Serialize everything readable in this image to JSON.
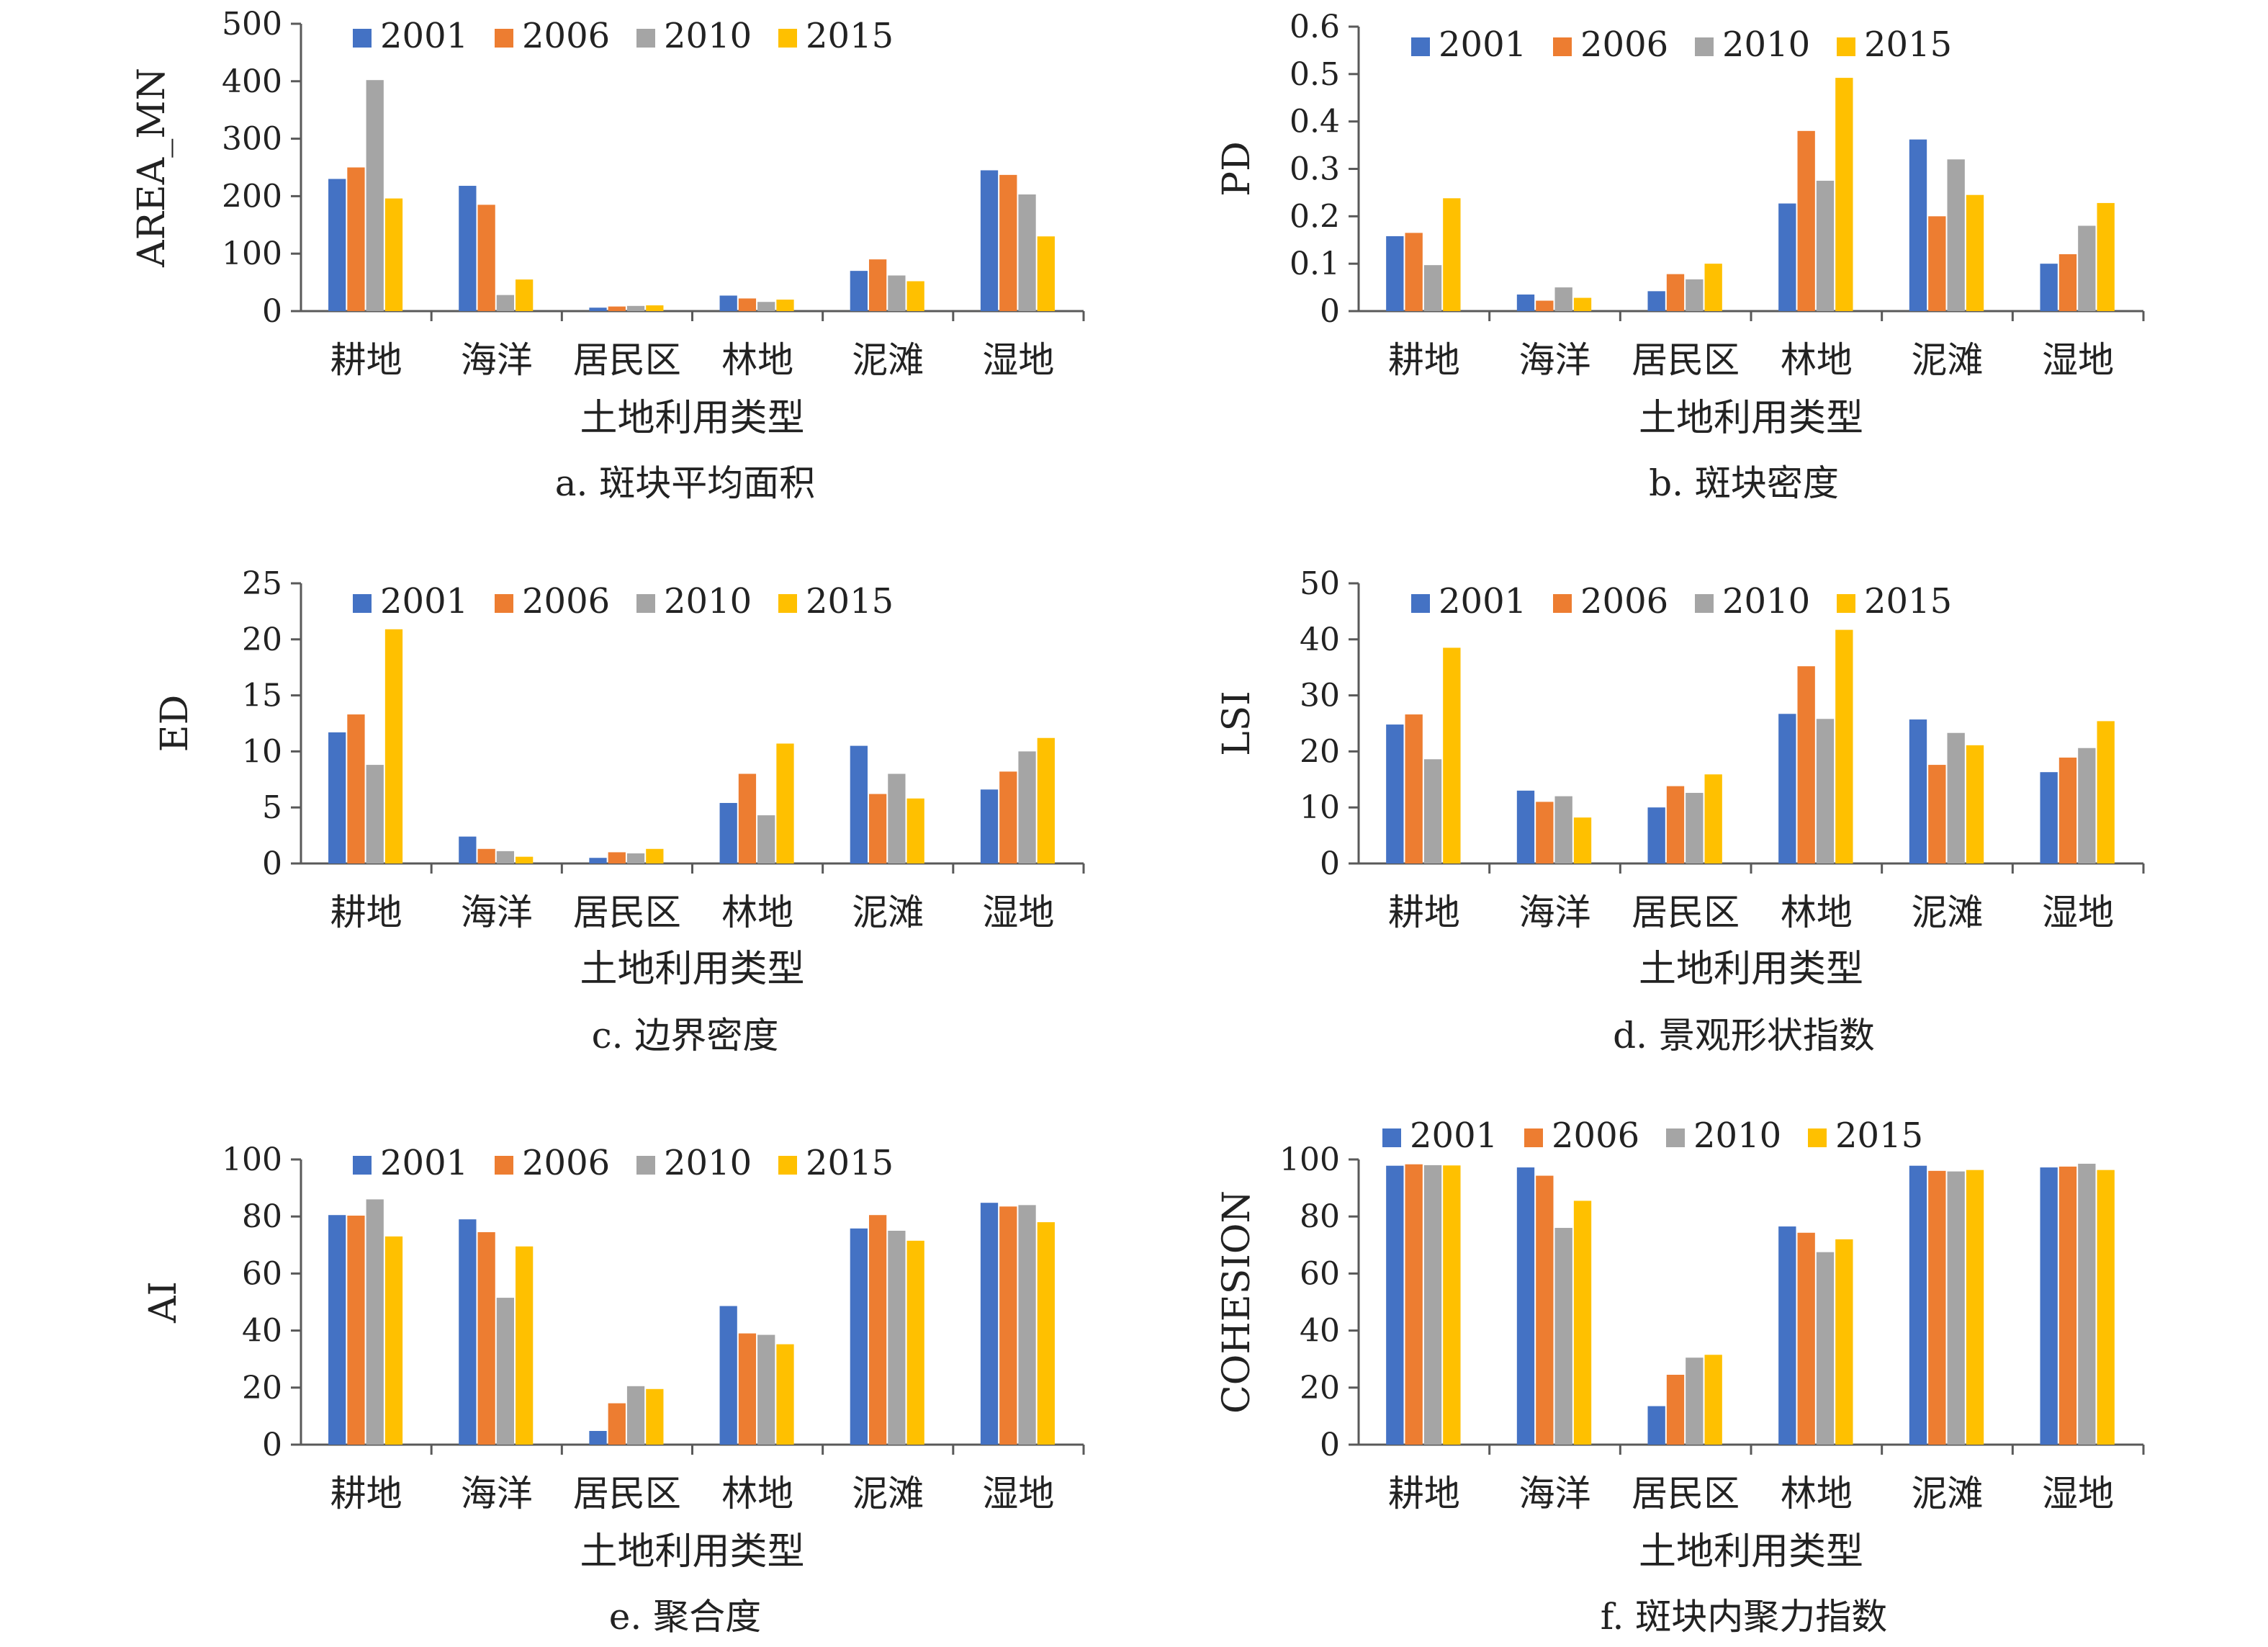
{
  "colors": {
    "2001": "#4472C4",
    "2006": "#ED7D31",
    "2010": "#A5A5A5",
    "2015": "#FFC000",
    "axis": "#595959",
    "text": "#222222"
  },
  "chart_data": [
    {
      "type": "bar",
      "caption": "a. 斑块平均面积",
      "ylabel": "AREA_MN",
      "xlabel": "土地利用类型",
      "categories": [
        "耕地",
        "海洋",
        "居民区",
        "林地",
        "泥滩",
        "湿地"
      ],
      "ylim": [
        0,
        500
      ],
      "yticks": [
        "0",
        "100",
        "200",
        "300",
        "400",
        "500"
      ],
      "legend": "top",
      "series": [
        {
          "name": "2001",
          "values": [
            230,
            218,
            6,
            27,
            70,
            245
          ]
        },
        {
          "name": "2006",
          "values": [
            250,
            185,
            8,
            22,
            90,
            237
          ]
        },
        {
          "name": "2010",
          "values": [
            402,
            28,
            9,
            16,
            62,
            203
          ]
        },
        {
          "name": "2015",
          "values": [
            196,
            55,
            10,
            20,
            52,
            130
          ]
        }
      ]
    },
    {
      "type": "bar",
      "caption": "b. 斑块密度",
      "ylabel": "PD",
      "xlabel": "土地利用类型",
      "categories": [
        "耕地",
        "海洋",
        "居民区",
        "林地",
        "泥滩",
        "湿地"
      ],
      "ylim": [
        0,
        0.6
      ],
      "yticks": [
        "0",
        "0.1",
        "0.2",
        "0.3",
        "0.4",
        "0.5",
        "0.6"
      ],
      "legend": "top",
      "series": [
        {
          "name": "2001",
          "values": [
            0.158,
            0.035,
            0.042,
            0.227,
            0.362,
            0.1
          ]
        },
        {
          "name": "2006",
          "values": [
            0.165,
            0.022,
            0.078,
            0.38,
            0.2,
            0.12
          ]
        },
        {
          "name": "2010",
          "values": [
            0.097,
            0.05,
            0.067,
            0.275,
            0.32,
            0.18
          ]
        },
        {
          "name": "2015",
          "values": [
            0.238,
            0.028,
            0.1,
            0.492,
            0.245,
            0.228
          ]
        }
      ]
    },
    {
      "type": "bar",
      "caption": "c. 边界密度",
      "ylabel": "ED",
      "xlabel": "土地利用类型",
      "categories": [
        "耕地",
        "海洋",
        "居民区",
        "林地",
        "泥滩",
        "湿地"
      ],
      "ylim": [
        0,
        25
      ],
      "yticks": [
        "0",
        "5",
        "10",
        "15",
        "20",
        "25"
      ],
      "legend": "top",
      "series": [
        {
          "name": "2001",
          "values": [
            11.7,
            2.4,
            0.5,
            5.4,
            10.5,
            6.6
          ]
        },
        {
          "name": "2006",
          "values": [
            13.3,
            1.3,
            1.0,
            8.0,
            6.2,
            8.2
          ]
        },
        {
          "name": "2010",
          "values": [
            8.8,
            1.1,
            0.9,
            4.3,
            8.0,
            10.0
          ]
        },
        {
          "name": "2015",
          "values": [
            20.9,
            0.6,
            1.3,
            10.7,
            5.8,
            11.2
          ]
        }
      ]
    },
    {
      "type": "bar",
      "caption": "d. 景观形状指数",
      "ylabel": "LSI",
      "xlabel": "土地利用类型",
      "categories": [
        "耕地",
        "海洋",
        "居民区",
        "林地",
        "泥滩",
        "湿地"
      ],
      "ylim": [
        0,
        50
      ],
      "yticks": [
        "0",
        "10",
        "20",
        "30",
        "40",
        "50"
      ],
      "legend": "top",
      "series": [
        {
          "name": "2001",
          "values": [
            24.8,
            13.0,
            10.0,
            26.7,
            25.7,
            16.3
          ]
        },
        {
          "name": "2006",
          "values": [
            26.6,
            11.0,
            13.8,
            35.2,
            17.6,
            18.9
          ]
        },
        {
          "name": "2010",
          "values": [
            18.6,
            12.0,
            12.6,
            25.8,
            23.3,
            20.6
          ]
        },
        {
          "name": "2015",
          "values": [
            38.5,
            8.2,
            15.9,
            41.7,
            21.1,
            25.4
          ]
        }
      ]
    },
    {
      "type": "bar",
      "caption": "e. 聚合度",
      "ylabel": "AI",
      "xlabel": "土地利用类型",
      "categories": [
        "耕地",
        "海洋",
        "居民区",
        "林地",
        "泥滩",
        "湿地"
      ],
      "ylim": [
        0,
        100
      ],
      "yticks": [
        "0",
        "20",
        "40",
        "60",
        "80",
        "100"
      ],
      "legend": "top",
      "series": [
        {
          "name": "2001",
          "values": [
            80.5,
            79.0,
            4.8,
            48.6,
            75.8,
            84.8
          ]
        },
        {
          "name": "2006",
          "values": [
            80.3,
            74.5,
            14.5,
            39.0,
            80.5,
            83.5
          ]
        },
        {
          "name": "2010",
          "values": [
            86.0,
            51.5,
            20.5,
            38.5,
            75.0,
            84.0
          ]
        },
        {
          "name": "2015",
          "values": [
            73.0,
            69.5,
            19.5,
            35.2,
            71.5,
            78.0
          ]
        }
      ]
    },
    {
      "type": "bar",
      "caption": "f. 斑块内聚力指数",
      "ylabel": "COHESION",
      "xlabel": "土地利用类型",
      "categories": [
        "耕地",
        "海洋",
        "居民区",
        "林地",
        "泥滩",
        "湿地"
      ],
      "ylim": [
        0,
        100
      ],
      "yticks": [
        "0",
        "20",
        "40",
        "60",
        "80",
        "100"
      ],
      "legend": "top",
      "series": [
        {
          "name": "2001",
          "values": [
            97.8,
            97.2,
            13.5,
            76.5,
            97.8,
            97.2
          ]
        },
        {
          "name": "2006",
          "values": [
            98.3,
            94.3,
            24.5,
            74.3,
            96.0,
            97.5
          ]
        },
        {
          "name": "2010",
          "values": [
            98.0,
            76.0,
            30.5,
            67.5,
            95.8,
            98.5
          ]
        },
        {
          "name": "2015",
          "values": [
            97.9,
            85.5,
            31.5,
            72.0,
            96.3,
            96.3
          ]
        }
      ]
    }
  ]
}
